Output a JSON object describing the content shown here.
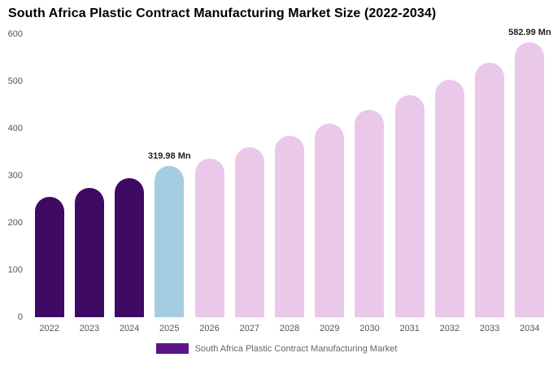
{
  "title": "South Africa Plastic Contract Manufacturing Market Size (2022-2034)",
  "legend": {
    "label": "South Africa Plastic Contract Manufacturing Market",
    "swatch_color": "#5c1589"
  },
  "colors": {
    "historical": "#3f0a63",
    "current": "#a5cde2",
    "forecast": "#eac8ea",
    "background": "#ffffff",
    "axis_text": "#555555",
    "annotation_text": "#222222"
  },
  "chart_data": {
    "type": "bar",
    "title": "South Africa Plastic Contract Manufacturing Market Size (2022-2034)",
    "xlabel": "",
    "ylabel": "",
    "ylim": [
      0,
      600
    ],
    "yticks": [
      0,
      100,
      200,
      300,
      400,
      500,
      600
    ],
    "grid": false,
    "legend_position": "bottom",
    "categories": [
      "2022",
      "2023",
      "2024",
      "2025",
      "2026",
      "2027",
      "2028",
      "2029",
      "2030",
      "2031",
      "2032",
      "2033",
      "2034"
    ],
    "values": [
      255,
      275,
      295,
      319.98,
      337,
      360,
      385,
      410,
      440,
      470,
      503,
      540,
      582.99
    ],
    "bar_segments": [
      "historical",
      "historical",
      "historical",
      "current",
      "forecast",
      "forecast",
      "forecast",
      "forecast",
      "forecast",
      "forecast",
      "forecast",
      "forecast",
      "forecast"
    ],
    "annotations": [
      {
        "category": "2025",
        "text": "319.98 Mn"
      },
      {
        "category": "2034",
        "text": "582.99 Mn"
      }
    ]
  }
}
